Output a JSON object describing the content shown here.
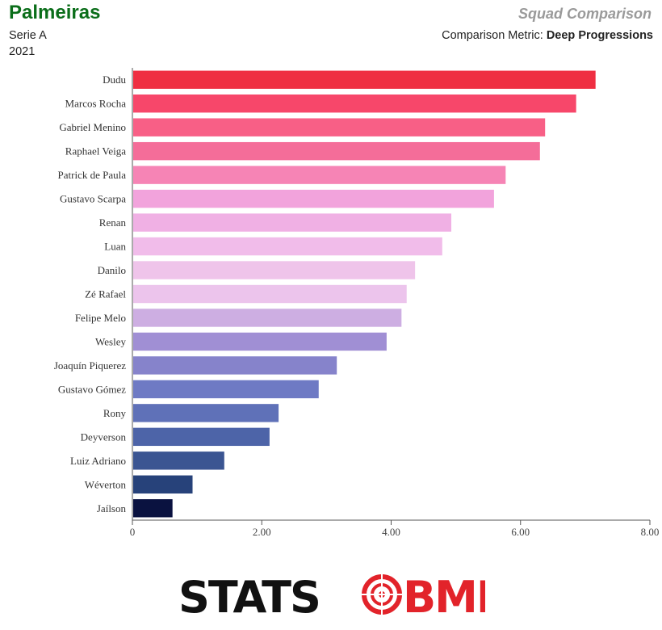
{
  "header": {
    "team": "Palmeiras",
    "league": "Serie A",
    "season": "2021",
    "comparison_title": "Squad Comparison",
    "metric_prefix": "Comparison Metric: ",
    "metric_name": "Deep Progressions"
  },
  "logo": {
    "text_left": "STATS",
    "text_right": "BMB",
    "colors": {
      "left": "#111111",
      "right": "#e2232a"
    }
  },
  "chart_data": {
    "type": "bar",
    "orientation": "horizontal",
    "categories": [
      "Dudu",
      "Marcos Rocha",
      "Gabriel Menino",
      "Raphael Veiga",
      "Patrick de Paula",
      "Gustavo Scarpa",
      "Renan",
      "Luan",
      "Danilo",
      "Zé Rafael",
      "Felipe Melo",
      "Wesley",
      "Joaquín Piquerez",
      "Gustavo Gómez",
      "Rony",
      "Deyverson",
      "Luiz Adriano",
      "Wéverton",
      "Jaílson"
    ],
    "values": [
      7.16,
      6.86,
      6.38,
      6.3,
      5.77,
      5.59,
      4.93,
      4.79,
      4.37,
      4.24,
      4.16,
      3.93,
      3.16,
      2.88,
      2.26,
      2.12,
      1.42,
      0.93,
      0.62
    ],
    "colors": [
      "#ef2f42",
      "#f7476a",
      "#f85f86",
      "#f46d99",
      "#f684b5",
      "#f2a3dc",
      "#f0b0e4",
      "#f1bcea",
      "#efc4ea",
      "#ecc4ec",
      "#cdaee2",
      "#a08fd4",
      "#8683cb",
      "#6e7ac4",
      "#5f71b8",
      "#4d64a8",
      "#3b5592",
      "#27427a",
      "#0a1240"
    ],
    "xlim": [
      0,
      8
    ],
    "xticks": [
      "0",
      "2.00",
      "4.00",
      "6.00",
      "8.00"
    ],
    "tick_values": [
      0,
      2,
      4,
      6,
      8
    ]
  }
}
